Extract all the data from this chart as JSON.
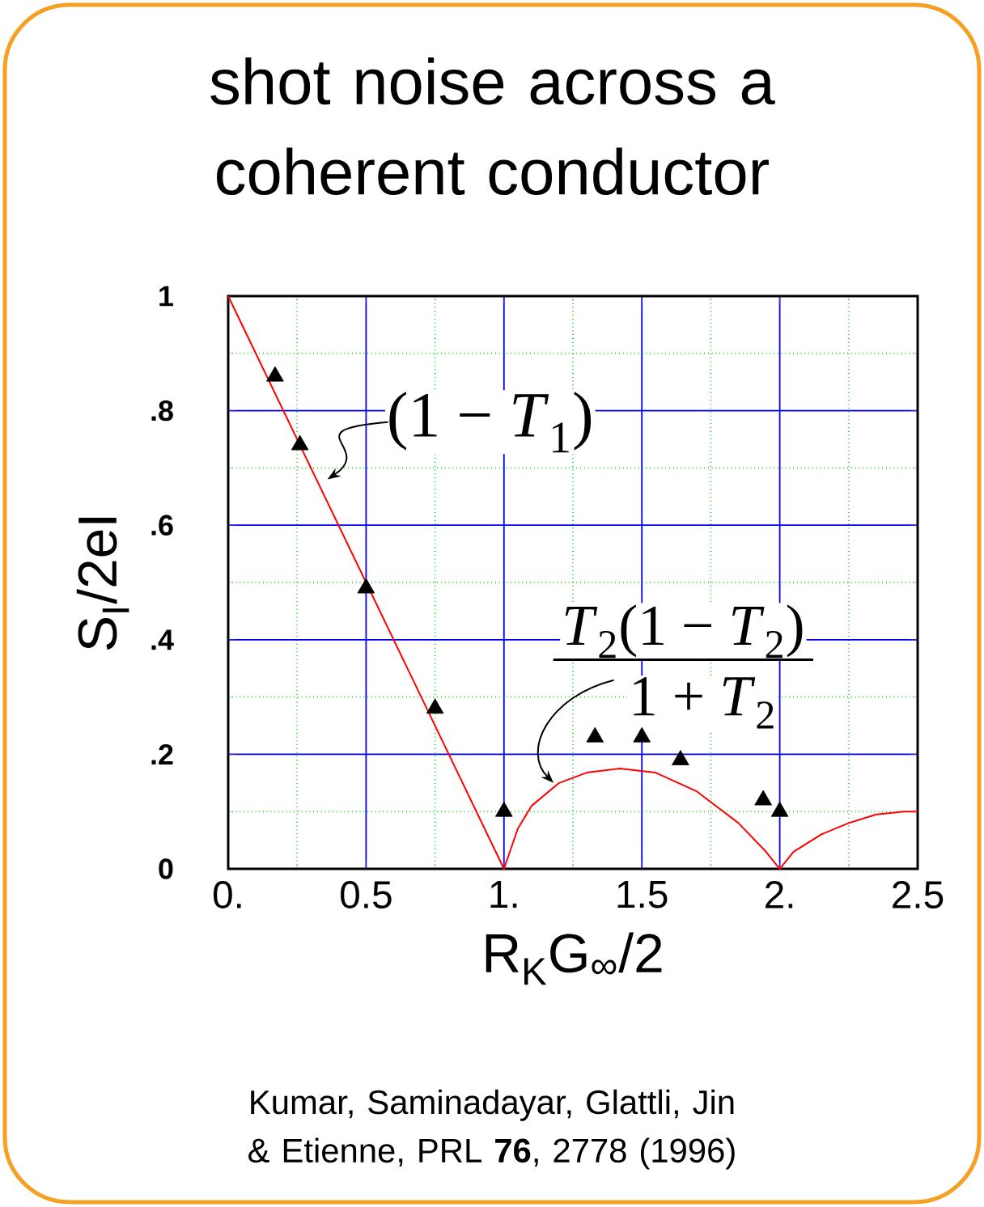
{
  "chart_data": {
    "type": "scatter",
    "title": "shot noise across a coherent conductor",
    "xlabel": "R$_{K}$G$_{∞}$/2",
    "ylabel": "S$_{I}$/2eI",
    "xlim": [
      0,
      2.5
    ],
    "ylim": [
      0,
      1
    ],
    "xticks": [
      {
        "value": 0,
        "label": "0."
      },
      0.5,
      {
        "value": 1,
        "label": "1."
      },
      1.5,
      {
        "value": 2,
        "label": "2."
      },
      2.5
    ],
    "yticks": [
      {
        "value": 0,
        "label": "0"
      },
      {
        "value": 0.2,
        "label": ".2"
      },
      {
        "value": 0.4,
        "label": ".4"
      },
      {
        "value": 0.6,
        "label": ".6"
      },
      {
        "value": 0.8,
        "label": ".8"
      },
      {
        "value": 1,
        "label": "1"
      }
    ],
    "grid": true,
    "series": [
      {
        "color": "#000000",
        "marker": "triangle",
        "x": [
          0.17,
          0.26,
          0.5,
          0.75,
          1.0,
          1.33,
          1.5,
          1.64,
          1.94,
          2.0
        ],
        "values": [
          0.86,
          0.74,
          0.49,
          0.28,
          0.1,
          0.23,
          0.23,
          0.19,
          0.12,
          0.1
        ]
      },
      {
        "type": "line",
        "color": "#ff0000",
        "marker": "none",
        "x": [
          0,
          1.0,
          1.05,
          1.1,
          1.2,
          1.3,
          1.42,
          1.55,
          1.7,
          1.85,
          1.95,
          2.0,
          2.05,
          2.15,
          2.25,
          2.35,
          2.45,
          2.5
        ],
        "values": [
          1,
          0,
          0.07,
          0.11,
          0.15,
          0.168,
          0.175,
          0.168,
          0.135,
          0.08,
          0.03,
          0,
          0.03,
          0.06,
          0.08,
          0.095,
          0.1,
          0.1
        ]
      }
    ],
    "annotations": [
      "(1 − *T*$_{1}$)",
      "*T*$_{2}$(1 − *T*$_{2}$)",
      "1 + *T*$_{2}$",
      "Kumar, Saminadayar, Glattli, Jin & Etienne, PRL **76**, 2778 (1996)"
    ]
  }
}
